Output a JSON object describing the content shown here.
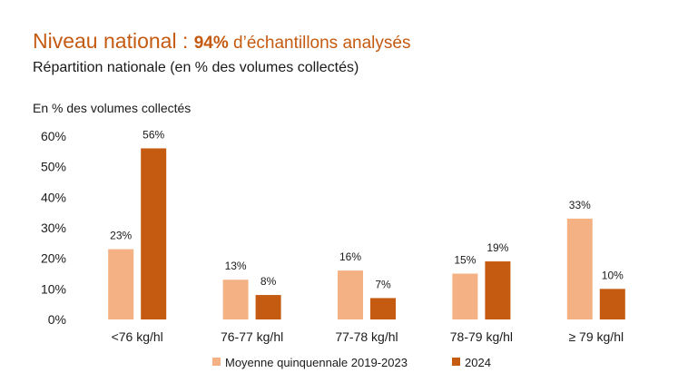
{
  "header": {
    "title_main": "Niveau national : ",
    "title_highlight": "94%",
    "title_rest": " d’échantillons analysés",
    "subtitle": "Répartition nationale (en % des volumes collectés)"
  },
  "colors": {
    "accent": "#c55a11",
    "series_1": "#f4b183",
    "series_2": "#c55a11",
    "text": "#1a1a1a"
  },
  "chart_data": {
    "type": "bar",
    "ylabel": "En % des volumes collectés",
    "ylim": [
      0,
      60
    ],
    "yticks": [
      "0%",
      "10%",
      "20%",
      "30%",
      "40%",
      "50%",
      "60%"
    ],
    "categories": [
      "<76 kg/hl",
      "76-77 kg/hl",
      "77-78 kg/hl",
      "78-79 kg/hl",
      "≥ 79 kg/hl"
    ],
    "series": [
      {
        "name": "Moyenne quinquennale 2019-2023",
        "values": [
          23,
          13,
          16,
          15,
          33
        ],
        "labels": [
          "23%",
          "13%",
          "16%",
          "15%",
          "33%"
        ]
      },
      {
        "name": "2024",
        "values": [
          56,
          8,
          7,
          19,
          10
        ],
        "labels": [
          "56%",
          "8%",
          "7%",
          "19%",
          "10%"
        ]
      }
    ],
    "grid": false,
    "legend_position": "bottom"
  }
}
